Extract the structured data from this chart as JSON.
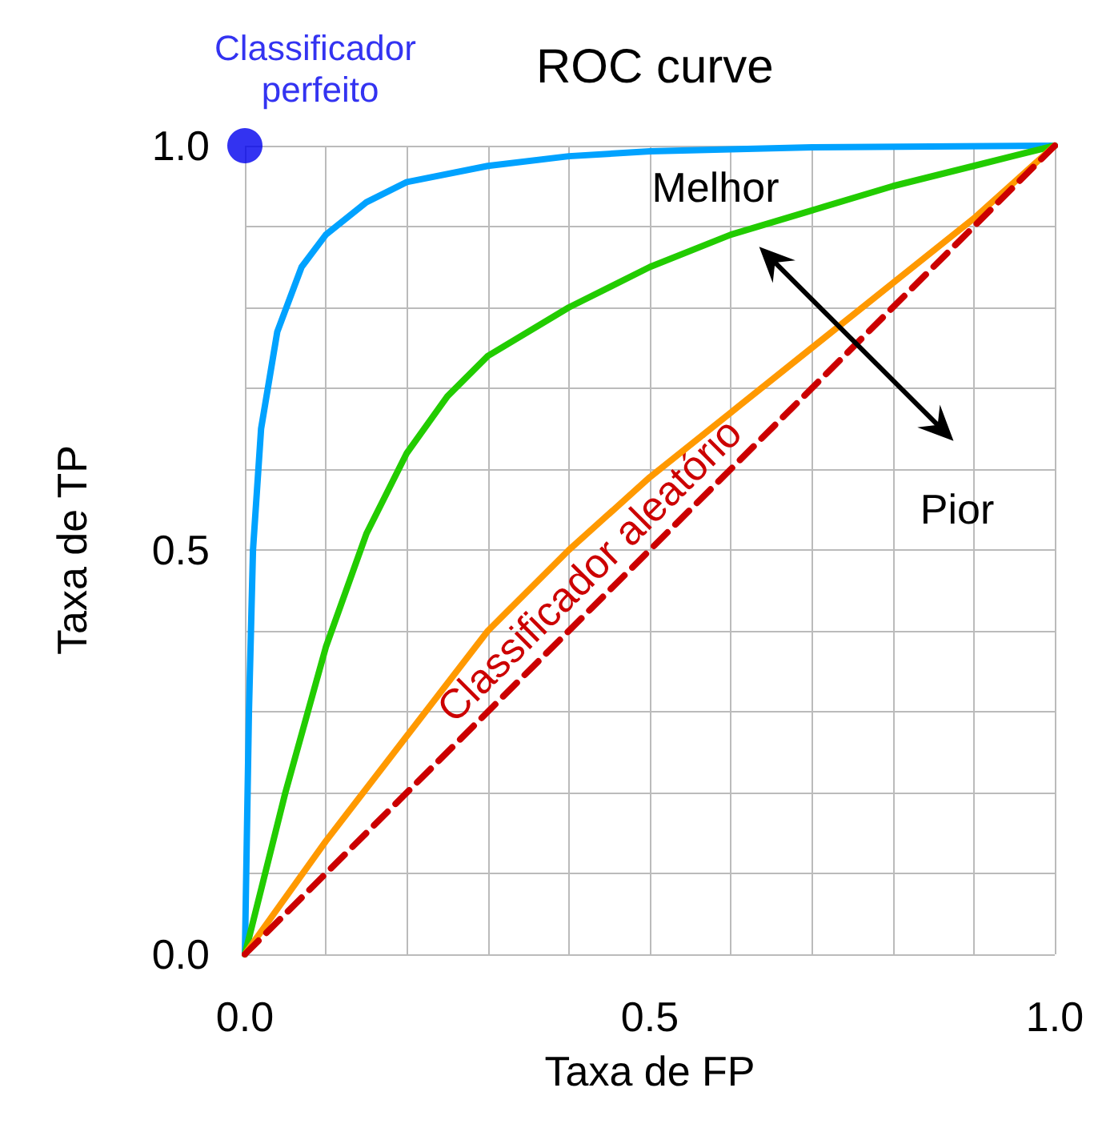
{
  "chart_data": {
    "type": "line",
    "title": "ROC curve",
    "xlabel": "Taxa de FP",
    "ylabel": "Taxa de TP",
    "xlim": [
      0,
      1
    ],
    "ylim": [
      0,
      1
    ],
    "xticks": [
      {
        "value": 0,
        "label": "0.0"
      },
      {
        "value": 0.1,
        "label": null
      },
      {
        "value": 0.2,
        "label": null
      },
      {
        "value": 0.3,
        "label": null
      },
      {
        "value": 0.4,
        "label": null
      },
      {
        "value": 0.5,
        "label": "0.5"
      },
      {
        "value": 0.6,
        "label": null
      },
      {
        "value": 0.7,
        "label": null
      },
      {
        "value": 0.8,
        "label": null
      },
      {
        "value": 0.9,
        "label": null
      },
      {
        "value": 1,
        "label": "1.0"
      }
    ],
    "yticks": [
      {
        "value": 0,
        "label": "0.0"
      },
      {
        "value": 0.1,
        "label": null
      },
      {
        "value": 0.2,
        "label": null
      },
      {
        "value": 0.3,
        "label": null
      },
      {
        "value": 0.4,
        "label": null
      },
      {
        "value": 0.5,
        "label": "0.5"
      },
      {
        "value": 0.6,
        "label": null
      },
      {
        "value": 0.7,
        "label": null
      },
      {
        "value": 0.8,
        "label": null
      },
      {
        "value": 0.9,
        "label": null
      },
      {
        "value": 1,
        "label": "1.0"
      }
    ],
    "grid": true,
    "legend": false,
    "marker": "none",
    "line_style": "solid",
    "series": [
      {
        "color": "#00a2ff",
        "x": [
          0,
          0.005,
          0.01,
          0.02,
          0.04,
          0.07,
          0.1,
          0.15,
          0.2,
          0.3,
          0.4,
          0.5,
          0.7,
          1
        ],
        "values": [
          0,
          0.3,
          0.5,
          0.65,
          0.77,
          0.85,
          0.89,
          0.93,
          0.955,
          0.975,
          0.987,
          0.993,
          0.998,
          1
        ]
      },
      {
        "color": "#22cc00",
        "x": [
          0,
          0.05,
          0.1,
          0.15,
          0.2,
          0.25,
          0.3,
          0.4,
          0.5,
          0.6,
          0.7,
          0.8,
          0.9,
          1
        ],
        "values": [
          0,
          0.2,
          0.38,
          0.52,
          0.62,
          0.69,
          0.74,
          0.8,
          0.85,
          0.89,
          0.92,
          0.95,
          0.975,
          1
        ]
      },
      {
        "color": "#ff9900",
        "x": [
          0,
          0.1,
          0.2,
          0.3,
          0.4,
          0.5,
          0.6,
          0.7,
          0.8,
          0.9,
          1
        ],
        "values": [
          0,
          0.14,
          0.27,
          0.4,
          0.5,
          0.59,
          0.67,
          0.75,
          0.83,
          0.91,
          1
        ]
      },
      {
        "name": "Classificador aleatório",
        "color": "#cc0000",
        "line_style": "dashed",
        "x": [
          0,
          1
        ],
        "values": [
          0,
          1
        ]
      },
      {
        "name": "Classificador perfeito",
        "type": "scatter",
        "marker": "circle",
        "color": "#0000ee",
        "x": [
          0
        ],
        "values": [
          1
        ]
      }
    ],
    "annotations": [
      "Melhor",
      "Pior"
    ]
  }
}
